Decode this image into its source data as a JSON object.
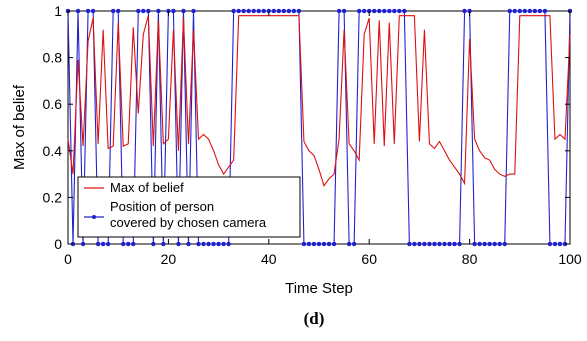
{
  "chart_data": {
    "type": "line",
    "xlabel": "Time Step",
    "ylabel": "Max of belief",
    "caption": "(d)",
    "xlim": [
      0,
      100
    ],
    "ylim": [
      0,
      1
    ],
    "xticks": [
      "0",
      "20",
      "40",
      "60",
      "80",
      "100"
    ],
    "yticks": [
      "0",
      "0.2",
      "0.4",
      "0.6",
      "0.8",
      "1"
    ],
    "grid": false,
    "legend_position": "bottom-left",
    "series": [
      {
        "name": "Max of belief",
        "color": "#dd1111",
        "marker": "none",
        "x": [
          0,
          1,
          2,
          3,
          4,
          5,
          6,
          7,
          8,
          9,
          10,
          11,
          12,
          13,
          14,
          15,
          16,
          17,
          18,
          19,
          20,
          21,
          22,
          23,
          24,
          25,
          26,
          27,
          28,
          29,
          30,
          31,
          32,
          33,
          34,
          35,
          36,
          37,
          38,
          39,
          40,
          41,
          42,
          43,
          44,
          45,
          46,
          47,
          48,
          49,
          50,
          51,
          52,
          53,
          54,
          55,
          56,
          57,
          58,
          59,
          60,
          61,
          62,
          63,
          64,
          65,
          66,
          67,
          68,
          69,
          70,
          71,
          72,
          73,
          74,
          75,
          76,
          77,
          78,
          79,
          80,
          81,
          82,
          83,
          84,
          85,
          86,
          87,
          88,
          89,
          90,
          91,
          92,
          93,
          94,
          95,
          96,
          97,
          98,
          99,
          100
        ],
        "values": [
          0.45,
          0.3,
          0.79,
          0.42,
          0.87,
          0.97,
          0.43,
          0.92,
          0.41,
          0.42,
          0.95,
          0.42,
          0.43,
          0.93,
          0.56,
          0.9,
          0.98,
          0.42,
          0.96,
          0.43,
          0.45,
          0.92,
          0.4,
          0.97,
          0.43,
          0.92,
          0.45,
          0.47,
          0.45,
          0.4,
          0.34,
          0.3,
          0.33,
          0.36,
          0.98,
          0.98,
          0.98,
          0.98,
          0.98,
          0.98,
          0.98,
          0.98,
          0.98,
          0.98,
          0.98,
          0.98,
          0.98,
          0.44,
          0.4,
          0.38,
          0.32,
          0.25,
          0.28,
          0.3,
          0.45,
          0.92,
          0.43,
          0.4,
          0.36,
          0.9,
          0.97,
          0.43,
          0.96,
          0.42,
          0.95,
          0.43,
          0.98,
          0.98,
          0.98,
          0.98,
          0.44,
          0.92,
          0.43,
          0.41,
          0.44,
          0.4,
          0.36,
          0.33,
          0.3,
          0.26,
          0.88,
          0.45,
          0.4,
          0.37,
          0.36,
          0.32,
          0.3,
          0.29,
          0.3,
          0.3,
          0.98,
          0.98,
          0.98,
          0.98,
          0.98,
          0.98,
          0.98,
          0.45,
          0.47,
          0.45,
          0.9
        ]
      },
      {
        "name": "Position of person\ncovered by chosen camera",
        "color": "#2222cc",
        "marker": "circle",
        "x": [
          0,
          1,
          2,
          3,
          4,
          5,
          6,
          7,
          8,
          9,
          10,
          11,
          12,
          13,
          14,
          15,
          16,
          17,
          18,
          19,
          20,
          21,
          22,
          23,
          24,
          25,
          26,
          27,
          28,
          29,
          30,
          31,
          32,
          33,
          34,
          35,
          36,
          37,
          38,
          39,
          40,
          41,
          42,
          43,
          44,
          45,
          46,
          47,
          48,
          49,
          50,
          51,
          52,
          53,
          54,
          55,
          56,
          57,
          58,
          59,
          60,
          61,
          62,
          63,
          64,
          65,
          66,
          67,
          68,
          69,
          70,
          71,
          72,
          73,
          74,
          75,
          76,
          77,
          78,
          79,
          80,
          81,
          82,
          83,
          84,
          85,
          86,
          87,
          88,
          89,
          90,
          91,
          92,
          93,
          94,
          95,
          96,
          97,
          98,
          99,
          100
        ],
        "values": [
          1,
          0,
          1,
          0,
          1,
          1,
          0,
          0,
          0,
          1,
          1,
          0,
          0,
          0,
          1,
          1,
          1,
          0,
          1,
          0,
          1,
          1,
          0,
          1,
          0,
          1,
          0,
          0,
          0,
          0,
          0,
          0,
          0,
          1,
          1,
          1,
          1,
          1,
          1,
          1,
          1,
          1,
          1,
          1,
          1,
          1,
          1,
          0,
          0,
          0,
          0,
          0,
          0,
          0,
          1,
          1,
          0,
          0,
          1,
          1,
          1,
          1,
          1,
          1,
          1,
          1,
          1,
          1,
          0,
          0,
          0,
          0,
          0,
          0,
          0,
          0,
          0,
          0,
          0,
          1,
          1,
          0,
          0,
          0,
          0,
          0,
          0,
          0,
          1,
          1,
          1,
          1,
          1,
          1,
          1,
          1,
          0,
          0,
          0,
          0,
          1
        ]
      }
    ]
  }
}
